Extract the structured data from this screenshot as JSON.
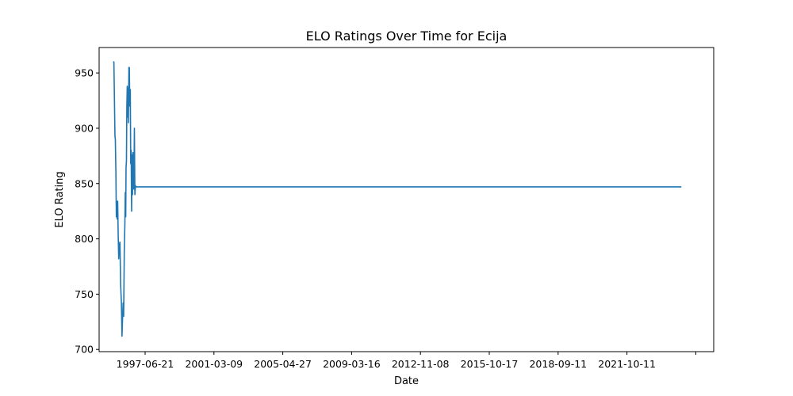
{
  "chart_data": {
    "type": "line",
    "title": "ELO Ratings Over Time for Ecija",
    "xlabel": "Date",
    "ylabel": "ELO Rating",
    "x_ticks": [
      "1997-06-21",
      "2001-03-09",
      "2005-04-27",
      "2009-03-16",
      "2012-11-08",
      "2015-10-17",
      "2018-09-11",
      "2021-10-11",
      ""
    ],
    "y_ticks": [
      700,
      750,
      800,
      850,
      900,
      950
    ],
    "ylim": [
      698,
      973
    ],
    "xlim": [
      "1995-06-23",
      "2025-10-09"
    ],
    "grid": false,
    "legend": "none",
    "series": [
      {
        "color": "#1f77b4",
        "points": [
          [
            "1996-03-01",
            960
          ],
          [
            "1996-03-15",
            960
          ],
          [
            "1996-03-25",
            925
          ],
          [
            "1996-04-03",
            893
          ],
          [
            "1996-04-10",
            890
          ],
          [
            "1996-04-20",
            860
          ],
          [
            "1996-04-28",
            820
          ],
          [
            "1996-05-05",
            834
          ],
          [
            "1996-05-12",
            818
          ],
          [
            "1996-05-22",
            834
          ],
          [
            "1996-06-01",
            802
          ],
          [
            "1996-06-10",
            782
          ],
          [
            "1996-06-20",
            795
          ],
          [
            "1996-07-02",
            797
          ],
          [
            "1996-07-15",
            758
          ],
          [
            "1996-07-28",
            742
          ],
          [
            "1996-08-08",
            712
          ],
          [
            "1996-08-18",
            728
          ],
          [
            "1996-08-28",
            742
          ],
          [
            "1996-09-07",
            730
          ],
          [
            "1996-09-18",
            790
          ],
          [
            "1996-09-28",
            812
          ],
          [
            "1996-10-06",
            842
          ],
          [
            "1996-10-14",
            820
          ],
          [
            "1996-10-20",
            865
          ],
          [
            "1996-10-27",
            870
          ],
          [
            "1996-11-03",
            920
          ],
          [
            "1996-11-10",
            938
          ],
          [
            "1996-11-17",
            910
          ],
          [
            "1996-11-24",
            936
          ],
          [
            "1996-12-01",
            905
          ],
          [
            "1996-12-10",
            955
          ],
          [
            "1996-12-18",
            955
          ],
          [
            "1996-12-26",
            920
          ],
          [
            "1997-01-04",
            935
          ],
          [
            "1997-01-12",
            868
          ],
          [
            "1997-01-20",
            880
          ],
          [
            "1997-01-28",
            825
          ],
          [
            "1997-02-05",
            876
          ],
          [
            "1997-02-13",
            840
          ],
          [
            "1997-02-22",
            878
          ],
          [
            "1997-03-02",
            862
          ],
          [
            "1997-03-10",
            845
          ],
          [
            "1997-03-19",
            900
          ],
          [
            "1997-03-28",
            840
          ],
          [
            "1997-04-08",
            848
          ],
          [
            "1997-04-20",
            847
          ],
          [
            "2024-03-06",
            847
          ]
        ]
      }
    ]
  }
}
